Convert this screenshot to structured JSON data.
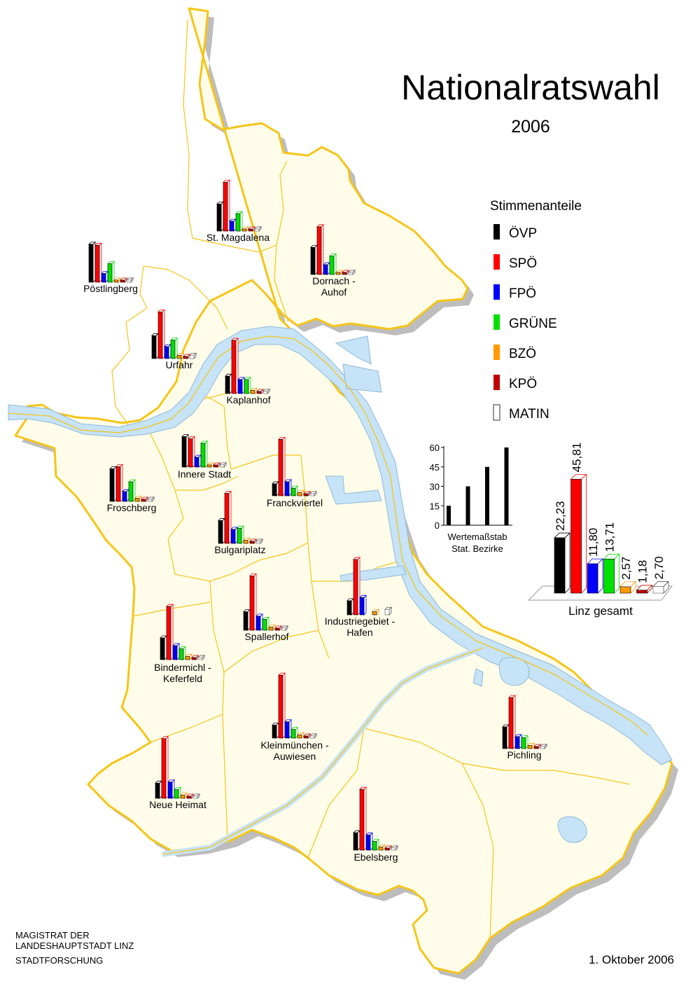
{
  "title": "Nationalratswahl",
  "year": "2006",
  "legend": {
    "title": "Stimmenanteile",
    "parties": [
      {
        "name": "ÖVP",
        "color": "#000000"
      },
      {
        "name": "SPÖ",
        "color": "#ff0000"
      },
      {
        "name": "FPÖ",
        "color": "#0000ff"
      },
      {
        "name": "GRÜNE",
        "color": "#00e000"
      },
      {
        "name": "BZÖ",
        "color": "#ff9900"
      },
      {
        "name": "KPÖ",
        "color": "#c00000"
      },
      {
        "name": "MATIN",
        "color": "#ffffff"
      }
    ]
  },
  "scale": {
    "ticks": [
      "60",
      "45",
      "30",
      "15",
      "0"
    ],
    "caption_line1": "Wertemaßstab",
    "caption_line2": "Stat. Bezirke",
    "tick_values": [
      60,
      45,
      30,
      15,
      0
    ],
    "sample_bars": [
      15,
      30,
      45,
      60
    ]
  },
  "total": {
    "label": "Linz gesamt",
    "values": [
      22.23,
      45.81,
      11.8,
      13.71,
      2.57,
      1.18,
      2.7
    ],
    "value_labels": [
      "22,23",
      "45,81",
      "11,80",
      "13,71",
      "2,57",
      "1,18",
      "2,70"
    ]
  },
  "colors": {
    "land": "#fffdea",
    "border": "#f5c518",
    "water": "#c6e3f7",
    "shadow": "#bdbdbd"
  },
  "districts": [
    {
      "name": "St. Magdalena",
      "values": [
        25,
        45,
        9,
        16,
        2,
        1,
        2
      ]
    },
    {
      "name": "Dornach - Auhof",
      "values": [
        25,
        44,
        9,
        17,
        2,
        1,
        2
      ]
    },
    {
      "name": "Pöstlingberg",
      "values": [
        35,
        34,
        8,
        17,
        2,
        1,
        2
      ]
    },
    {
      "name": "Urfahr",
      "values": [
        21,
        43,
        11,
        17,
        3,
        1,
        3
      ]
    },
    {
      "name": "Kaplanhof",
      "values": [
        16,
        49,
        13,
        13,
        3,
        1,
        2
      ]
    },
    {
      "name": "Innere Stadt",
      "values": [
        28,
        26,
        9,
        22,
        2,
        1,
        2
      ]
    },
    {
      "name": "Froschberg",
      "values": [
        30,
        32,
        9,
        18,
        3,
        1,
        2
      ]
    },
    {
      "name": "Franckviertel",
      "values": [
        11,
        52,
        13,
        7,
        3,
        1,
        2
      ]
    },
    {
      "name": "Bulgariplatz",
      "values": [
        21,
        46,
        13,
        14,
        3,
        1,
        2
      ]
    },
    {
      "name": "Industriegebiet - Hafen",
      "values": [
        13,
        51,
        16,
        0,
        3,
        0,
        5
      ]
    },
    {
      "name": "Spallerhof",
      "values": [
        17,
        50,
        13,
        10,
        3,
        1,
        2
      ]
    },
    {
      "name": "Bindermichl - Keferfeld",
      "values": [
        20,
        49,
        13,
        10,
        3,
        1,
        2
      ]
    },
    {
      "name": "Kleinmünchen - Auwiesen",
      "values": [
        12,
        58,
        15,
        8,
        3,
        1,
        2
      ]
    },
    {
      "name": "Pichling",
      "values": [
        20,
        47,
        11,
        10,
        3,
        1,
        2
      ]
    },
    {
      "name": "Neue Heimat",
      "values": [
        14,
        55,
        15,
        8,
        3,
        1,
        2
      ]
    },
    {
      "name": "Ebelsberg",
      "values": [
        16,
        56,
        14,
        8,
        3,
        1,
        2
      ]
    }
  ],
  "footer": {
    "org_line1": "MAGISTRAT  DER",
    "org_line2": "LANDESHAUPTSTADT  LINZ",
    "org_line3": "STADTFORSCHUNG",
    "date": "1. Oktober 2006"
  }
}
